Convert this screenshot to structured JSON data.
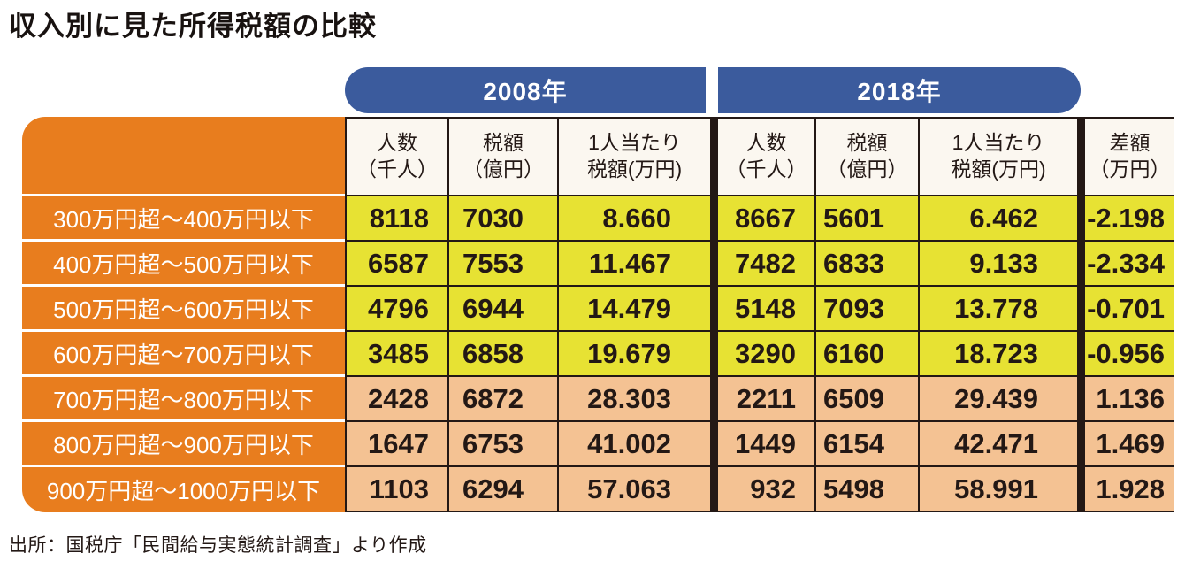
{
  "title": "収入別に見た所得税額の比較",
  "source_note": "出所：国税庁「民間給与実態統計調査」より作成",
  "colors": {
    "year_header_blue": "#3b5b9d",
    "label_orange": "#e87d1e",
    "row_yellow": "#e7e233",
    "row_peach": "#f4c293",
    "border_dark": "#231815",
    "header_bg": "#fbf7f0"
  },
  "chart_data": {
    "type": "table",
    "title": "収入別に見た所得税額の比較",
    "source": "出所：国税庁「民間給与実態統計調査」より作成",
    "year_groups": [
      "2008年",
      "2018年"
    ],
    "columns": [
      {
        "line1": "人数",
        "line2": "（千人）"
      },
      {
        "line1": "税額",
        "line2": "（億円）"
      },
      {
        "line1": "1人当たり",
        "line2": "税額(万円)"
      },
      {
        "line1": "差額",
        "line2": "（万円）"
      }
    ],
    "rows": [
      {
        "label": "300万円超～400万円以下",
        "values": [
          "8118",
          "7030",
          "8.660",
          "8667",
          "5601",
          "6.462",
          "-2.198"
        ]
      },
      {
        "label": "400万円超～500万円以下",
        "values": [
          "6587",
          "7553",
          "11.467",
          "7482",
          "6833",
          "9.133",
          "-2.334"
        ]
      },
      {
        "label": "500万円超～600万円以下",
        "values": [
          "4796",
          "6944",
          "14.479",
          "5148",
          "7093",
          "13.778",
          "-0.701"
        ]
      },
      {
        "label": "600万円超～700万円以下",
        "values": [
          "3485",
          "6858",
          "19.679",
          "3290",
          "6160",
          "18.723",
          "-0.956"
        ]
      },
      {
        "label": "700万円超～800万円以下",
        "values": [
          "2428",
          "6872",
          "28.303",
          "2211",
          "6509",
          "29.439",
          "1.136"
        ]
      },
      {
        "label": "800万円超～900万円以下",
        "values": [
          "1647",
          "6753",
          "41.002",
          "1449",
          "6154",
          "42.471",
          "1.469"
        ]
      },
      {
        "label": "900万円超～1000万円以下",
        "values": [
          "1103",
          "6294",
          "57.063",
          "932",
          "5498",
          "58.991",
          "1.928"
        ]
      }
    ]
  }
}
